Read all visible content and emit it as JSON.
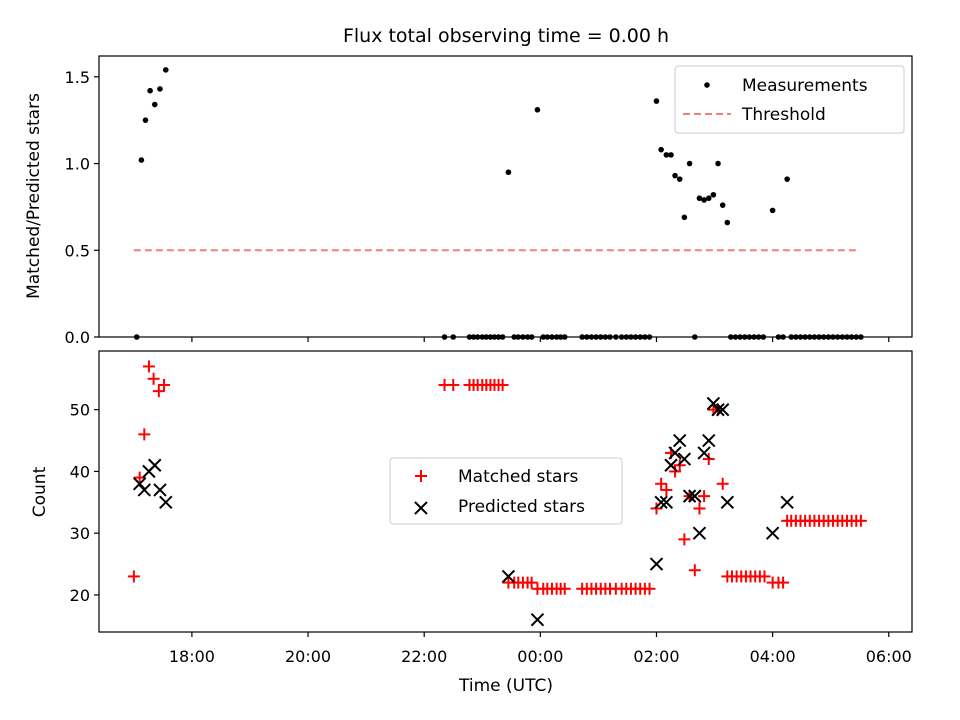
{
  "chart_data": [
    {
      "type": "scatter",
      "title": "Flux total observing time = 0.00 h",
      "xlabel": "",
      "ylabel": "Matched/Predicted stars",
      "xlim": [
        16.4,
        30.4
      ],
      "ylim": [
        0,
        1.62
      ],
      "yticks": [
        0.0,
        0.5,
        1.0,
        1.5
      ],
      "ytick_labels": [
        "0.0",
        "0.5",
        "1.0",
        "1.5"
      ],
      "xticks": [
        18,
        20,
        22,
        24,
        26,
        28,
        30
      ],
      "legend_position": "top-right",
      "series": [
        {
          "name": "Measurements",
          "kind": "dots",
          "color": "#000000",
          "points": [
            [
              17.05,
              0.0
            ],
            [
              17.13,
              1.02
            ],
            [
              17.2,
              1.25
            ],
            [
              17.28,
              1.42
            ],
            [
              17.36,
              1.34
            ],
            [
              17.45,
              1.43
            ],
            [
              17.55,
              1.54
            ],
            [
              22.35,
              0.0
            ],
            [
              22.5,
              0.0
            ],
            [
              22.78,
              0.0
            ],
            [
              22.85,
              0.0
            ],
            [
              22.92,
              0.0
            ],
            [
              23.0,
              0.0
            ],
            [
              23.07,
              0.0
            ],
            [
              23.14,
              0.0
            ],
            [
              23.21,
              0.0
            ],
            [
              23.28,
              0.0
            ],
            [
              23.35,
              0.0
            ],
            [
              23.45,
              0.95
            ],
            [
              23.55,
              0.0
            ],
            [
              23.62,
              0.0
            ],
            [
              23.7,
              0.0
            ],
            [
              23.78,
              0.0
            ],
            [
              23.85,
              0.0
            ],
            [
              23.95,
              1.31
            ],
            [
              24.05,
              0.0
            ],
            [
              24.12,
              0.0
            ],
            [
              24.2,
              0.0
            ],
            [
              24.28,
              0.0
            ],
            [
              24.35,
              0.0
            ],
            [
              24.42,
              0.0
            ],
            [
              24.72,
              0.0
            ],
            [
              24.8,
              0.0
            ],
            [
              24.88,
              0.0
            ],
            [
              24.96,
              0.0
            ],
            [
              25.04,
              0.0
            ],
            [
              25.12,
              0.0
            ],
            [
              25.2,
              0.0
            ],
            [
              25.3,
              0.0
            ],
            [
              25.4,
              0.0
            ],
            [
              25.48,
              0.0
            ],
            [
              25.56,
              0.0
            ],
            [
              25.64,
              0.0
            ],
            [
              25.72,
              0.0
            ],
            [
              25.8,
              0.0
            ],
            [
              25.88,
              0.0
            ],
            [
              26.0,
              1.36
            ],
            [
              26.08,
              1.08
            ],
            [
              26.17,
              1.05
            ],
            [
              26.25,
              1.05
            ],
            [
              26.32,
              0.93
            ],
            [
              26.4,
              0.91
            ],
            [
              26.48,
              0.69
            ],
            [
              26.57,
              1.0
            ],
            [
              26.66,
              0.0
            ],
            [
              26.74,
              0.8
            ],
            [
              26.82,
              0.79
            ],
            [
              26.9,
              0.8
            ],
            [
              26.98,
              0.82
            ],
            [
              27.06,
              1.0
            ],
            [
              27.14,
              0.76
            ],
            [
              27.22,
              0.66
            ],
            [
              27.28,
              0.0
            ],
            [
              27.36,
              0.0
            ],
            [
              27.44,
              0.0
            ],
            [
              27.52,
              0.0
            ],
            [
              27.6,
              0.0
            ],
            [
              27.68,
              0.0
            ],
            [
              27.76,
              0.0
            ],
            [
              27.84,
              0.0
            ],
            [
              28.0,
              0.73
            ],
            [
              28.1,
              0.0
            ],
            [
              28.18,
              0.0
            ],
            [
              28.25,
              0.91
            ],
            [
              28.32,
              0.0
            ],
            [
              28.4,
              0.0
            ],
            [
              28.48,
              0.0
            ],
            [
              28.56,
              0.0
            ],
            [
              28.64,
              0.0
            ],
            [
              28.72,
              0.0
            ],
            [
              28.8,
              0.0
            ],
            [
              28.88,
              0.0
            ],
            [
              28.96,
              0.0
            ],
            [
              29.04,
              0.0
            ],
            [
              29.12,
              0.0
            ],
            [
              29.2,
              0.0
            ],
            [
              29.28,
              0.0
            ],
            [
              29.36,
              0.0
            ],
            [
              29.44,
              0.0
            ],
            [
              29.52,
              0.0
            ]
          ]
        },
        {
          "name": "Threshold",
          "kind": "dashed-line",
          "color": "#f08080",
          "points": [
            [
              17.0,
              0.5
            ],
            [
              29.5,
              0.5
            ]
          ]
        }
      ]
    },
    {
      "type": "scatter",
      "title": "",
      "xlabel": "Time (UTC)",
      "ylabel": "Count",
      "xlim": [
        16.4,
        30.4
      ],
      "ylim": [
        14,
        59.5
      ],
      "yticks": [
        20,
        30,
        40,
        50
      ],
      "ytick_labels": [
        "20",
        "30",
        "40",
        "50"
      ],
      "xticks": [
        18,
        20,
        22,
        24,
        26,
        28,
        30
      ],
      "xtick_labels": [
        "18:00",
        "20:00",
        "22:00",
        "00:00",
        "02:00",
        "04:00",
        "06:00"
      ],
      "legend_position": "center",
      "series": [
        {
          "name": "Matched stars",
          "kind": "plus",
          "color": "#ff0000",
          "points": [
            [
              17.0,
              23
            ],
            [
              17.1,
              39
            ],
            [
              17.18,
              46
            ],
            [
              17.26,
              57
            ],
            [
              17.34,
              55
            ],
            [
              17.43,
              53
            ],
            [
              17.52,
              54
            ],
            [
              22.35,
              54
            ],
            [
              22.5,
              54
            ],
            [
              22.78,
              54
            ],
            [
              22.85,
              54
            ],
            [
              22.92,
              54
            ],
            [
              23.0,
              54
            ],
            [
              23.07,
              54
            ],
            [
              23.14,
              54
            ],
            [
              23.21,
              54
            ],
            [
              23.28,
              54
            ],
            [
              23.35,
              54
            ],
            [
              23.45,
              22
            ],
            [
              23.55,
              22
            ],
            [
              23.62,
              22
            ],
            [
              23.7,
              22
            ],
            [
              23.78,
              22
            ],
            [
              23.85,
              22
            ],
            [
              23.95,
              21
            ],
            [
              24.05,
              21
            ],
            [
              24.12,
              21
            ],
            [
              24.2,
              21
            ],
            [
              24.28,
              21
            ],
            [
              24.35,
              21
            ],
            [
              24.42,
              21
            ],
            [
              24.72,
              21
            ],
            [
              24.8,
              21
            ],
            [
              24.88,
              21
            ],
            [
              24.96,
              21
            ],
            [
              25.04,
              21
            ],
            [
              25.12,
              21
            ],
            [
              25.2,
              21
            ],
            [
              25.3,
              21
            ],
            [
              25.4,
              21
            ],
            [
              25.48,
              21
            ],
            [
              25.56,
              21
            ],
            [
              25.64,
              21
            ],
            [
              25.72,
              21
            ],
            [
              25.8,
              21
            ],
            [
              25.88,
              21
            ],
            [
              26.0,
              34
            ],
            [
              26.08,
              38
            ],
            [
              26.17,
              37
            ],
            [
              26.25,
              43
            ],
            [
              26.32,
              40
            ],
            [
              26.4,
              41
            ],
            [
              26.48,
              29
            ],
            [
              26.57,
              36
            ],
            [
              26.66,
              24
            ],
            [
              26.74,
              34
            ],
            [
              26.82,
              36
            ],
            [
              26.9,
              42
            ],
            [
              26.98,
              50
            ],
            [
              27.06,
              50
            ],
            [
              27.14,
              38
            ],
            [
              27.22,
              23
            ],
            [
              27.3,
              23
            ],
            [
              27.38,
              23
            ],
            [
              27.46,
              23
            ],
            [
              27.54,
              23
            ],
            [
              27.62,
              23
            ],
            [
              27.7,
              23
            ],
            [
              27.78,
              23
            ],
            [
              27.86,
              23
            ],
            [
              28.0,
              22
            ],
            [
              28.1,
              22
            ],
            [
              28.18,
              22
            ],
            [
              28.25,
              32
            ],
            [
              28.32,
              32
            ],
            [
              28.4,
              32
            ],
            [
              28.48,
              32
            ],
            [
              28.56,
              32
            ],
            [
              28.64,
              32
            ],
            [
              28.72,
              32
            ],
            [
              28.8,
              32
            ],
            [
              28.88,
              32
            ],
            [
              28.96,
              32
            ],
            [
              29.04,
              32
            ],
            [
              29.12,
              32
            ],
            [
              29.2,
              32
            ],
            [
              29.28,
              32
            ],
            [
              29.36,
              32
            ],
            [
              29.44,
              32
            ],
            [
              29.52,
              32
            ]
          ]
        },
        {
          "name": "Predicted stars",
          "kind": "x",
          "color": "#000000",
          "points": [
            [
              17.1,
              38
            ],
            [
              17.18,
              37
            ],
            [
              17.26,
              40
            ],
            [
              17.36,
              41
            ],
            [
              17.45,
              37
            ],
            [
              17.55,
              35
            ],
            [
              23.45,
              23
            ],
            [
              23.95,
              16
            ],
            [
              26.0,
              25
            ],
            [
              26.08,
              35
            ],
            [
              26.17,
              35
            ],
            [
              26.25,
              41
            ],
            [
              26.32,
              43
            ],
            [
              26.4,
              45
            ],
            [
              26.48,
              42
            ],
            [
              26.57,
              36
            ],
            [
              26.66,
              36
            ],
            [
              26.74,
              30
            ],
            [
              26.82,
              43
            ],
            [
              26.9,
              45
            ],
            [
              26.98,
              51
            ],
            [
              27.06,
              50
            ],
            [
              27.14,
              50
            ],
            [
              27.22,
              35
            ],
            [
              28.0,
              30
            ],
            [
              28.25,
              35
            ]
          ]
        }
      ]
    }
  ]
}
